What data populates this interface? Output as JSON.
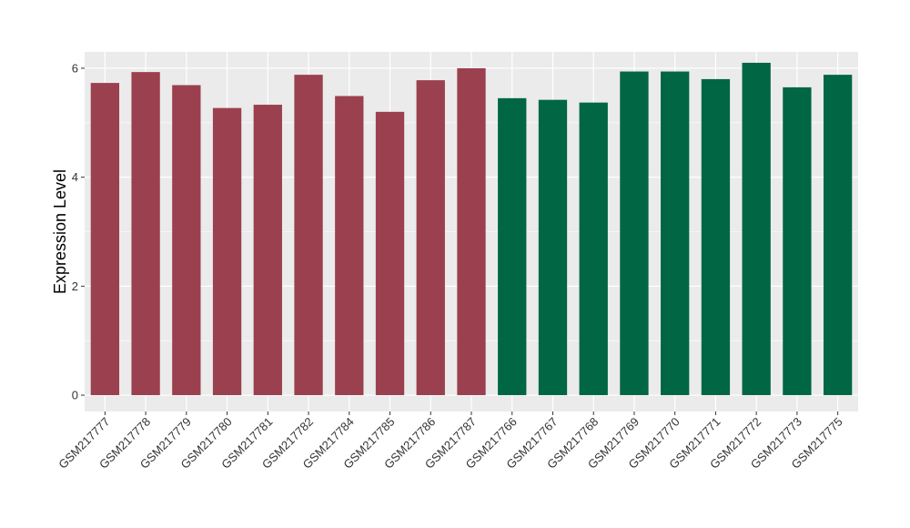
{
  "chart_data": {
    "type": "bar",
    "title": "",
    "xlabel": "",
    "ylabel": "Expression Level",
    "ylim": [
      -0.3,
      6.3
    ],
    "yticks": [
      0,
      2,
      4,
      6
    ],
    "grid": true,
    "legend": "none",
    "colors": {
      "group_a": "#9b404e",
      "group_b": "#006644",
      "panel_bg": "#ebebeb",
      "grid": "#ffffff"
    },
    "categories": [
      "GSM217777",
      "GSM217778",
      "GSM217779",
      "GSM217780",
      "GSM217781",
      "GSM217782",
      "GSM217784",
      "GSM217785",
      "GSM217786",
      "GSM217787",
      "GSM217766",
      "GSM217767",
      "GSM217768",
      "GSM217769",
      "GSM217770",
      "GSM217771",
      "GSM217772",
      "GSM217773",
      "GSM217775"
    ],
    "values": [
      5.73,
      5.93,
      5.69,
      5.27,
      5.33,
      5.88,
      5.49,
      5.2,
      5.78,
      6.0,
      5.45,
      5.42,
      5.37,
      5.94,
      5.94,
      5.8,
      6.1,
      5.65,
      5.88
    ],
    "groups": [
      "a",
      "a",
      "a",
      "a",
      "a",
      "a",
      "a",
      "a",
      "a",
      "a",
      "b",
      "b",
      "b",
      "b",
      "b",
      "b",
      "b",
      "b",
      "b"
    ]
  }
}
